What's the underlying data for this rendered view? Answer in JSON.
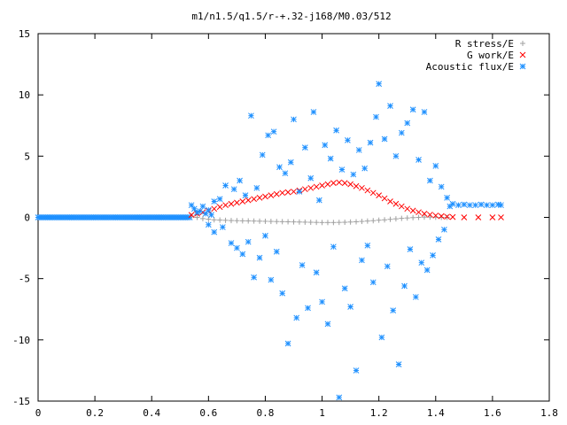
{
  "chart_data": {
    "type": "scatter",
    "title": "m1/n1.5/q1.5/r-+.32-j168/M0.03/512",
    "xlabel": "",
    "ylabel": "",
    "xlim": [
      0,
      1.8
    ],
    "ylim": [
      -15,
      15
    ],
    "x_ticks": [
      0,
      0.2,
      0.4,
      0.6,
      0.8,
      1,
      1.2,
      1.4,
      1.6,
      1.8
    ],
    "y_ticks": [
      -15,
      -10,
      -5,
      0,
      5,
      10,
      15
    ],
    "grid": false,
    "legend_position": "top-right",
    "series": [
      {
        "name": "R stress/E",
        "marker": "+",
        "color": "#a0a0a0",
        "points": [
          [
            0.54,
            0.1
          ],
          [
            0.56,
            0.0
          ],
          [
            0.58,
            -0.1
          ],
          [
            0.6,
            -0.15
          ],
          [
            0.62,
            -0.2
          ],
          [
            0.64,
            -0.22
          ],
          [
            0.66,
            -0.24
          ],
          [
            0.68,
            -0.26
          ],
          [
            0.7,
            -0.27
          ],
          [
            0.72,
            -0.28
          ],
          [
            0.74,
            -0.29
          ],
          [
            0.76,
            -0.3
          ],
          [
            0.78,
            -0.31
          ],
          [
            0.8,
            -0.32
          ],
          [
            0.82,
            -0.33
          ],
          [
            0.84,
            -0.34
          ],
          [
            0.86,
            -0.35
          ],
          [
            0.88,
            -0.36
          ],
          [
            0.9,
            -0.37
          ],
          [
            0.92,
            -0.38
          ],
          [
            0.94,
            -0.39
          ],
          [
            0.96,
            -0.4
          ],
          [
            0.98,
            -0.41
          ],
          [
            1.0,
            -0.42
          ],
          [
            1.02,
            -0.42
          ],
          [
            1.04,
            -0.42
          ],
          [
            1.06,
            -0.41
          ],
          [
            1.08,
            -0.4
          ],
          [
            1.1,
            -0.38
          ],
          [
            1.12,
            -0.36
          ],
          [
            1.14,
            -0.33
          ],
          [
            1.16,
            -0.3
          ],
          [
            1.18,
            -0.27
          ],
          [
            1.2,
            -0.23
          ],
          [
            1.22,
            -0.2
          ],
          [
            1.24,
            -0.16
          ],
          [
            1.26,
            -0.12
          ],
          [
            1.28,
            -0.08
          ],
          [
            1.3,
            -0.05
          ],
          [
            1.32,
            -0.02
          ],
          [
            1.34,
            0.0
          ],
          [
            1.36,
            0.02
          ],
          [
            1.38,
            0.02
          ],
          [
            1.4,
            0.01
          ],
          [
            1.42,
            0.0
          ],
          [
            1.44,
            0.0
          ]
        ]
      },
      {
        "name": "G work/E",
        "marker": "x",
        "color": "#ff0000",
        "points": [
          [
            0.54,
            0.2
          ],
          [
            0.56,
            0.3
          ],
          [
            0.58,
            0.42
          ],
          [
            0.6,
            0.55
          ],
          [
            0.62,
            0.7
          ],
          [
            0.64,
            0.85
          ],
          [
            0.66,
            1.0
          ],
          [
            0.68,
            1.1
          ],
          [
            0.7,
            1.2
          ],
          [
            0.72,
            1.3
          ],
          [
            0.74,
            1.4
          ],
          [
            0.76,
            1.5
          ],
          [
            0.78,
            1.6
          ],
          [
            0.8,
            1.7
          ],
          [
            0.82,
            1.8
          ],
          [
            0.84,
            1.9
          ],
          [
            0.86,
            2.0
          ],
          [
            0.88,
            2.05
          ],
          [
            0.9,
            2.1
          ],
          [
            0.92,
            2.2
          ],
          [
            0.94,
            2.3
          ],
          [
            0.96,
            2.4
          ],
          [
            0.98,
            2.5
          ],
          [
            1.0,
            2.6
          ],
          [
            1.02,
            2.7
          ],
          [
            1.04,
            2.8
          ],
          [
            1.06,
            2.85
          ],
          [
            1.08,
            2.8
          ],
          [
            1.1,
            2.7
          ],
          [
            1.12,
            2.55
          ],
          [
            1.14,
            2.4
          ],
          [
            1.16,
            2.2
          ],
          [
            1.18,
            2.0
          ],
          [
            1.2,
            1.8
          ],
          [
            1.22,
            1.55
          ],
          [
            1.24,
            1.3
          ],
          [
            1.26,
            1.1
          ],
          [
            1.28,
            0.9
          ],
          [
            1.3,
            0.7
          ],
          [
            1.32,
            0.55
          ],
          [
            1.34,
            0.42
          ],
          [
            1.36,
            0.3
          ],
          [
            1.38,
            0.22
          ],
          [
            1.4,
            0.15
          ],
          [
            1.42,
            0.1
          ],
          [
            1.44,
            0.06
          ],
          [
            1.46,
            0.03
          ],
          [
            1.5,
            0.0
          ],
          [
            1.55,
            0.0
          ],
          [
            1.6,
            0.0
          ],
          [
            1.63,
            0.0
          ]
        ]
      },
      {
        "name": "Acoustic flux/E",
        "marker": "*",
        "color": "#1e90ff",
        "points": [
          [
            0.54,
            1.0
          ],
          [
            0.55,
            0.7
          ],
          [
            0.56,
            0.4
          ],
          [
            0.57,
            0.5
          ],
          [
            0.58,
            0.9
          ],
          [
            0.59,
            0.3
          ],
          [
            0.6,
            0.6
          ],
          [
            0.61,
            0.2
          ],
          [
            0.62,
            1.3
          ],
          [
            0.6,
            -0.6
          ],
          [
            0.62,
            -1.2
          ],
          [
            0.64,
            1.5
          ],
          [
            0.65,
            -0.8
          ],
          [
            0.66,
            2.6
          ],
          [
            0.68,
            -2.1
          ],
          [
            0.69,
            2.3
          ],
          [
            0.7,
            -2.5
          ],
          [
            0.71,
            3.0
          ],
          [
            0.72,
            -3.0
          ],
          [
            0.73,
            1.8
          ],
          [
            0.74,
            -2.0
          ],
          [
            0.75,
            8.3
          ],
          [
            0.76,
            -4.9
          ],
          [
            0.77,
            2.4
          ],
          [
            0.78,
            -3.3
          ],
          [
            0.79,
            5.1
          ],
          [
            0.8,
            -1.5
          ],
          [
            0.81,
            6.7
          ],
          [
            0.82,
            -5.1
          ],
          [
            0.83,
            7.0
          ],
          [
            0.84,
            -2.8
          ],
          [
            0.85,
            4.1
          ],
          [
            0.86,
            -6.2
          ],
          [
            0.87,
            3.6
          ],
          [
            0.88,
            -10.3
          ],
          [
            0.89,
            4.5
          ],
          [
            0.9,
            8.0
          ],
          [
            0.91,
            -8.2
          ],
          [
            0.92,
            2.1
          ],
          [
            0.93,
            -3.9
          ],
          [
            0.94,
            5.7
          ],
          [
            0.95,
            -7.4
          ],
          [
            0.96,
            3.2
          ],
          [
            0.97,
            8.6
          ],
          [
            0.98,
            -4.5
          ],
          [
            0.99,
            1.4
          ],
          [
            1.0,
            -6.9
          ],
          [
            1.01,
            5.9
          ],
          [
            1.02,
            -8.7
          ],
          [
            1.03,
            4.8
          ],
          [
            1.04,
            -2.4
          ],
          [
            1.05,
            7.1
          ],
          [
            1.06,
            -14.7
          ],
          [
            1.07,
            3.9
          ],
          [
            1.08,
            -5.8
          ],
          [
            1.09,
            6.3
          ],
          [
            1.1,
            -7.3
          ],
          [
            1.11,
            3.5
          ],
          [
            1.12,
            -12.5
          ],
          [
            1.13,
            5.5
          ],
          [
            1.14,
            -3.5
          ],
          [
            1.15,
            4.0
          ],
          [
            1.16,
            -2.3
          ],
          [
            1.17,
            6.1
          ],
          [
            1.18,
            -5.3
          ],
          [
            1.19,
            8.2
          ],
          [
            1.2,
            10.9
          ],
          [
            1.21,
            -9.8
          ],
          [
            1.22,
            6.4
          ],
          [
            1.23,
            -4.0
          ],
          [
            1.24,
            9.1
          ],
          [
            1.25,
            -7.6
          ],
          [
            1.26,
            5.0
          ],
          [
            1.27,
            -12.0
          ],
          [
            1.28,
            6.9
          ],
          [
            1.29,
            -5.6
          ],
          [
            1.3,
            7.7
          ],
          [
            1.31,
            -2.6
          ],
          [
            1.32,
            8.8
          ],
          [
            1.33,
            -6.5
          ],
          [
            1.34,
            4.7
          ],
          [
            1.35,
            -3.7
          ],
          [
            1.36,
            8.6
          ],
          [
            1.37,
            -4.3
          ],
          [
            1.38,
            3.0
          ],
          [
            1.39,
            -3.1
          ],
          [
            1.4,
            4.2
          ],
          [
            1.41,
            -1.8
          ],
          [
            1.42,
            2.5
          ],
          [
            1.43,
            -1.0
          ],
          [
            1.44,
            1.6
          ],
          [
            1.45,
            0.9
          ],
          [
            1.46,
            1.1
          ],
          [
            1.48,
            1.0
          ],
          [
            1.5,
            1.05
          ],
          [
            1.52,
            1.0
          ],
          [
            1.54,
            1.0
          ],
          [
            1.56,
            1.05
          ],
          [
            1.58,
            1.0
          ],
          [
            1.6,
            1.0
          ],
          [
            1.62,
            1.05
          ],
          [
            1.63,
            1.0
          ]
        ]
      }
    ]
  },
  "legend": {
    "items": [
      {
        "label": "R stress/E",
        "color": "#a0a0a0",
        "marker": "+"
      },
      {
        "label": "G work/E",
        "color": "#ff0000",
        "marker": "x"
      },
      {
        "label": "Acoustic flux/E",
        "color": "#1e90ff",
        "marker": "*"
      }
    ]
  }
}
